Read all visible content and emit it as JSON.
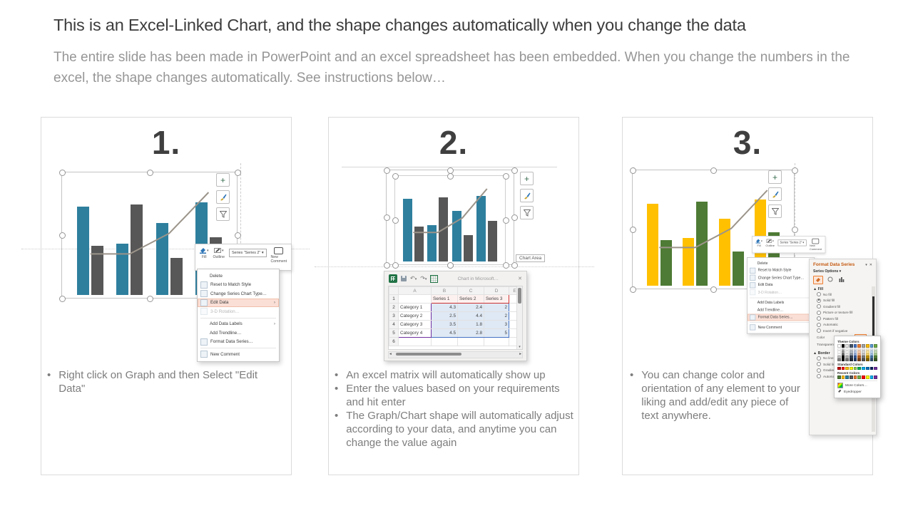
{
  "header": {
    "title": "This is an Excel-Linked Chart, and the shape changes automatically when you change the data",
    "subtitle": "The entire slide has been made in PowerPoint and an excel spreadsheet has been embedded. When you change the numbers in the excel, the shape changes automatically. See instructions below…"
  },
  "chart_data": {
    "type": "bar",
    "categories": [
      "Category 1",
      "Category 2",
      "Category 3",
      "Category 4"
    ],
    "series": [
      {
        "name": "Series 1",
        "type": "bar",
        "values": [
          4.3,
          2.5,
          3.5,
          4.5
        ]
      },
      {
        "name": "Series 2",
        "type": "bar",
        "values": [
          2.4,
          4.4,
          1.8,
          2.8
        ]
      },
      {
        "name": "Series 3",
        "type": "line",
        "values": [
          2,
          2,
          3,
          5
        ]
      }
    ],
    "ylim": [
      0,
      5
    ],
    "legend": "none",
    "grid": false
  },
  "glyphs": {
    "caret_down": "▾",
    "submenu_arrow": "›",
    "collapse": "▲",
    "close": "✕",
    "plus": "+",
    "undo": "↶",
    "redo": "↷",
    "scroll_left": "◂",
    "scroll_right": "▸",
    "scroll_down": "▾"
  },
  "mini_toolbar": {
    "fill_label": "Fill",
    "outline_label": "Outline",
    "series_dropdown": "Series \"Series 2\"",
    "new_comment_label": "New Comment"
  },
  "context_menu": {
    "items": [
      {
        "label": "Delete",
        "icon": false
      },
      {
        "label": "Reset to Match Style",
        "icon": true
      },
      {
        "label": "Change Series Chart Type…",
        "icon": true
      },
      {
        "label": "Edit Data",
        "icon": true,
        "submenu": true
      },
      {
        "label": "3-D Rotation…",
        "icon": true,
        "disabled": true
      },
      {
        "sep": true
      },
      {
        "label": "Add Data Labels",
        "icon": false,
        "submenu": true
      },
      {
        "label": "Add Trendline…",
        "icon": false
      },
      {
        "label": "Format Data Series…",
        "icon": true
      },
      {
        "sep": true
      },
      {
        "label": "New Comment",
        "icon": true
      }
    ]
  },
  "panels": {
    "one": {
      "number": "1.",
      "menu_highlight": "Edit Data",
      "chart_colors": {
        "bar1": "#2E7F9E",
        "bar2": "#575757",
        "line": "#9b948a"
      },
      "bullets": [
        "Right click on Graph and then Select \"Edit Data\""
      ]
    },
    "two": {
      "number": "2.",
      "chart_colors": {
        "bar1": "#2E7F9E",
        "bar2": "#575757",
        "line": "#9b948a"
      },
      "chart_area_tooltip": "Chart Area",
      "excel": {
        "window_title": "Chart in Microsoft…",
        "columns": [
          "A",
          "B",
          "C",
          "D",
          "E"
        ],
        "rows": [
          {
            "num": "1",
            "a": "",
            "b": "Series 1",
            "c": "Series 2",
            "d": "Series 3",
            "e": ""
          },
          {
            "num": "2",
            "a": "Category 1",
            "b": "4.3",
            "c": "2.4",
            "d": "2",
            "e": ""
          },
          {
            "num": "3",
            "a": "Category 2",
            "b": "2.5",
            "c": "4.4",
            "d": "2",
            "e": ""
          },
          {
            "num": "4",
            "a": "Category 3",
            "b": "3.5",
            "c": "1.8",
            "d": "3",
            "e": ""
          },
          {
            "num": "5",
            "a": "Category 4",
            "b": "4.5",
            "c": "2.8",
            "d": "5",
            "e": ""
          },
          {
            "num": "6",
            "a": "",
            "b": "",
            "c": "",
            "d": "",
            "e": ""
          }
        ]
      },
      "bullets": [
        "An excel matrix will automatically show up",
        "Enter the values based on your requirements and hit enter",
        "The Graph/Chart shape will automatically adjust according to your data, and anytime you can change the value again"
      ]
    },
    "three": {
      "number": "3.",
      "menu_highlight": "Format Data Series…",
      "chart_colors": {
        "bar1": "#FFC000",
        "bar2": "#4E7B35",
        "line": "#9b948a"
      },
      "format_panel": {
        "title": "Format Data Series",
        "section": "Series Options",
        "fill_heading": "Fill",
        "fill_options": [
          {
            "label": "No fill"
          },
          {
            "label": "Solid fill",
            "selected": true
          },
          {
            "label": "Gradient fill"
          },
          {
            "label": "Picture or texture fill"
          },
          {
            "label": "Pattern fill"
          },
          {
            "label": "Automatic"
          },
          {
            "label": "Invert if negative"
          }
        ],
        "color_label": "Color",
        "transparency_label": "Transparency",
        "border_heading": "Border",
        "border_options": [
          "No line",
          "Solid line",
          "Gradient line",
          "Automatic"
        ]
      },
      "color_picker": {
        "theme_label": "Theme Colors",
        "standard_label": "Standard Colors",
        "recent_label": "Recent Colors",
        "more_label": "More Colors…",
        "eyedropper_label": "Eyedropper",
        "theme_colors": [
          "#FFFFFF",
          "#000000",
          "#E7E6E6",
          "#44546A",
          "#4472C4",
          "#ED7D31",
          "#A5A5A5",
          "#FFC000",
          "#5B9BD5",
          "#70AD47"
        ],
        "standard_colors": [
          "#C00000",
          "#FF0000",
          "#FFC000",
          "#FFFF00",
          "#92D050",
          "#00B050",
          "#00B0F0",
          "#0070C0",
          "#002060",
          "#7030A0"
        ],
        "recent_colors": [
          "#4E7B35",
          "#FFC000",
          "#2E7F9E",
          "#575757",
          "#ED7D31",
          "#70AD47",
          "#FF0000",
          "#FFFF00",
          "#00B0F0",
          "#7030A0"
        ]
      },
      "bullets": [
        "You can change color and orientation of any element to your liking and add/edit any piece of text anywhere."
      ]
    }
  }
}
